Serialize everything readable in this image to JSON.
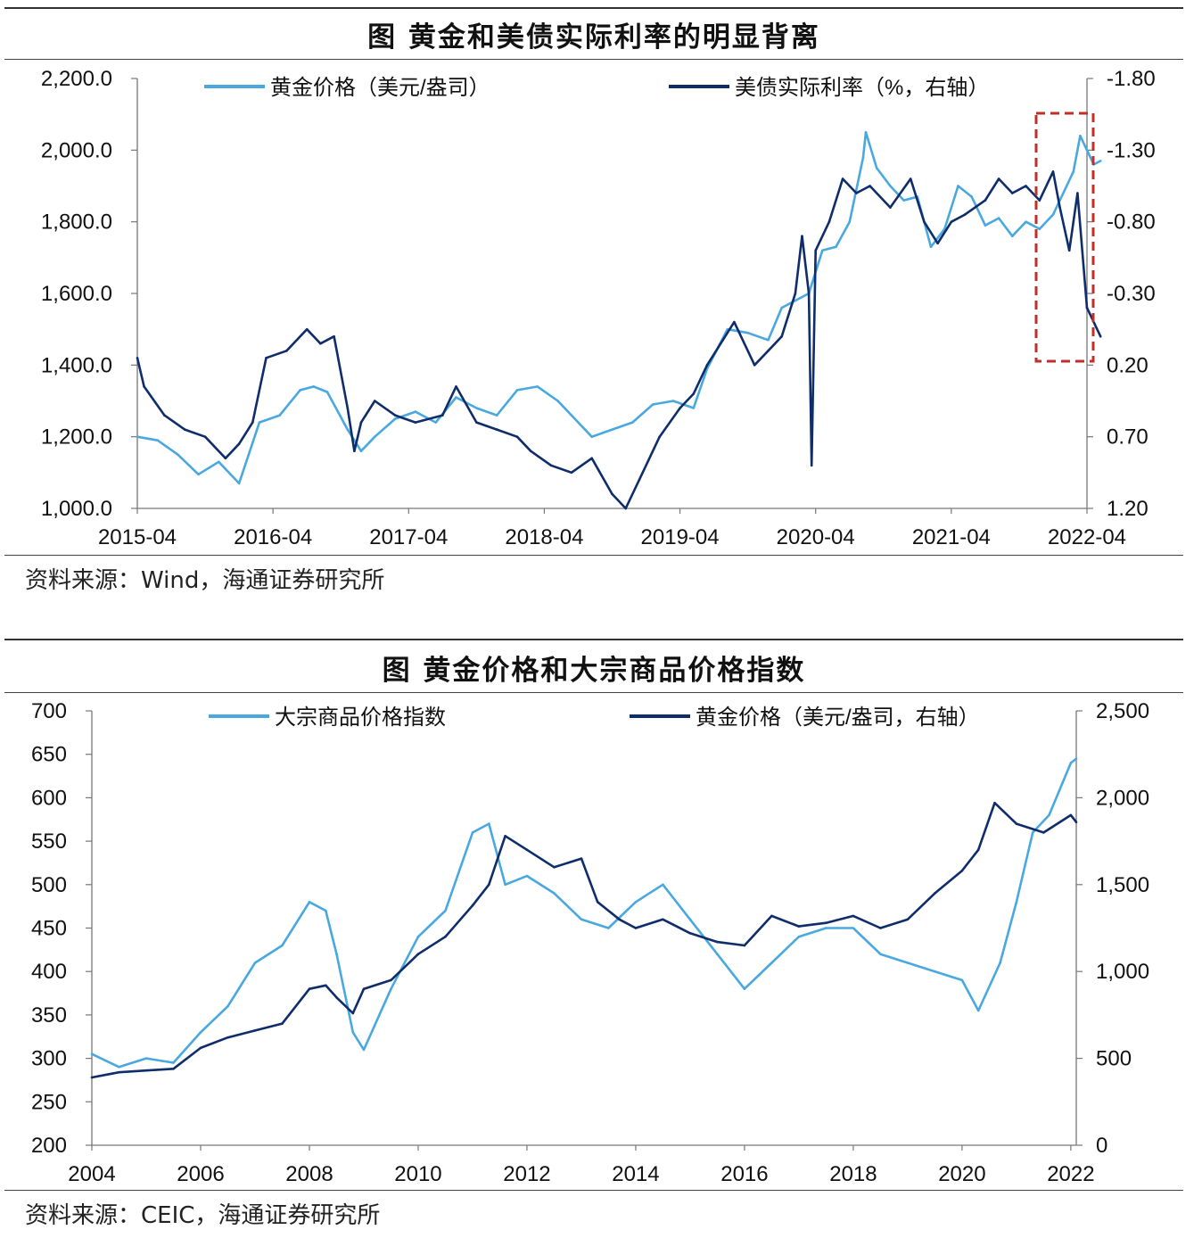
{
  "chart_data": [
    {
      "type": "line",
      "title": "图 黄金和美债实际利率的明显背离",
      "source": "资料来源：Wind，海通证券研究所",
      "x_ticks": [
        "2015-04",
        "2016-04",
        "2017-04",
        "2018-04",
        "2019-04",
        "2020-04",
        "2021-04",
        "2022-04"
      ],
      "y_left": {
        "ticks": [
          "1,000.0",
          "1,200.0",
          "1,400.0",
          "1,600.0",
          "1,800.0",
          "2,000.0",
          "2,200.0"
        ],
        "range": [
          1000,
          2200
        ]
      },
      "y_right": {
        "ticks": [
          "1.20",
          "0.70",
          "0.20",
          "-0.30",
          "-0.80",
          "-1.30",
          "-1.80"
        ],
        "range": [
          1.2,
          -1.8
        ],
        "inverted": true
      },
      "series": [
        {
          "name": "黄金价格（美元/盎司）",
          "axis": "left",
          "color": "#4aa8e0",
          "x": [
            2015.25,
            2015.4,
            2015.55,
            2015.7,
            2015.85,
            2016.0,
            2016.15,
            2016.3,
            2016.45,
            2016.55,
            2016.65,
            2016.8,
            2016.9,
            2017.0,
            2017.15,
            2017.3,
            2017.45,
            2017.6,
            2017.75,
            2017.9,
            2018.05,
            2018.2,
            2018.35,
            2018.45,
            2018.6,
            2018.75,
            2018.9,
            2019.05,
            2019.2,
            2019.35,
            2019.45,
            2019.6,
            2019.75,
            2019.9,
            2020.0,
            2020.1,
            2020.2,
            2020.3,
            2020.4,
            2020.5,
            2020.6,
            2020.62,
            2020.7,
            2020.8,
            2020.9,
            2021.0,
            2021.1,
            2021.2,
            2021.3,
            2021.4,
            2021.5,
            2021.6,
            2021.7,
            2021.8,
            2021.9,
            2022.0,
            2022.1,
            2022.15,
            2022.2,
            2022.3,
            2022.35
          ],
          "y": [
            1200,
            1190,
            1150,
            1095,
            1130,
            1070,
            1240,
            1260,
            1330,
            1340,
            1325,
            1220,
            1160,
            1200,
            1250,
            1270,
            1240,
            1310,
            1280,
            1260,
            1330,
            1340,
            1300,
            1260,
            1200,
            1220,
            1240,
            1290,
            1300,
            1280,
            1390,
            1500,
            1490,
            1470,
            1560,
            1580,
            1600,
            1720,
            1730,
            1800,
            1980,
            2050,
            1950,
            1900,
            1860,
            1870,
            1730,
            1780,
            1900,
            1870,
            1790,
            1810,
            1760,
            1800,
            1780,
            1820,
            1900,
            1940,
            2040,
            1960,
            1970
          ]
        },
        {
          "name": "美债实际利率（%，右轴）",
          "axis": "right",
          "color": "#0f2d6b",
          "x": [
            2015.25,
            2015.3,
            2015.45,
            2015.6,
            2015.75,
            2015.9,
            2016.0,
            2016.1,
            2016.2,
            2016.35,
            2016.5,
            2016.6,
            2016.7,
            2016.8,
            2016.85,
            2016.9,
            2017.0,
            2017.15,
            2017.3,
            2017.5,
            2017.6,
            2017.75,
            2017.9,
            2018.05,
            2018.15,
            2018.3,
            2018.45,
            2018.6,
            2018.75,
            2018.85,
            2018.95,
            2019.1,
            2019.25,
            2019.35,
            2019.45,
            2019.55,
            2019.65,
            2019.8,
            2019.9,
            2020.0,
            2020.1,
            2020.15,
            2020.2,
            2020.22,
            2020.25,
            2020.35,
            2020.45,
            2020.55,
            2020.65,
            2020.8,
            2020.95,
            2021.05,
            2021.15,
            2021.25,
            2021.35,
            2021.5,
            2021.6,
            2021.7,
            2021.8,
            2021.9,
            2022.0,
            2022.05,
            2022.12,
            2022.18,
            2022.25,
            2022.35
          ],
          "y": [
            0.15,
            0.35,
            0.55,
            0.65,
            0.7,
            0.85,
            0.75,
            0.6,
            0.15,
            0.1,
            -0.05,
            0.05,
            0.0,
            0.5,
            0.8,
            0.6,
            0.45,
            0.55,
            0.6,
            0.55,
            0.35,
            0.6,
            0.65,
            0.7,
            0.8,
            0.9,
            0.95,
            0.85,
            1.1,
            1.2,
            1.0,
            0.7,
            0.5,
            0.4,
            0.2,
            0.05,
            -0.1,
            0.2,
            0.1,
            0.0,
            -0.3,
            -0.7,
            -0.3,
            0.9,
            -0.6,
            -0.8,
            -1.1,
            -1.0,
            -1.05,
            -0.9,
            -1.1,
            -0.8,
            -0.65,
            -0.8,
            -0.85,
            -0.95,
            -1.1,
            -1.0,
            -1.05,
            -0.95,
            -1.15,
            -0.9,
            -0.6,
            -1.0,
            -0.2,
            0.0
          ]
        }
      ],
      "annotation": "red dashed box highlighting 2022 divergence"
    },
    {
      "type": "line",
      "title": "图 黄金价格和大宗商品价格指数",
      "source": "资料来源：CEIC，海通证券研究所",
      "x_ticks": [
        "2004",
        "2006",
        "2008",
        "2010",
        "2012",
        "2014",
        "2016",
        "2018",
        "2020",
        "2022"
      ],
      "y_left": {
        "ticks": [
          "200",
          "250",
          "300",
          "350",
          "400",
          "450",
          "500",
          "550",
          "600",
          "650",
          "700"
        ],
        "range": [
          200,
          700
        ]
      },
      "y_right": {
        "ticks": [
          "0",
          "500",
          "1,000",
          "1,500",
          "2,000",
          "2,500"
        ],
        "range": [
          0,
          2500
        ]
      },
      "series": [
        {
          "name": "大宗商品价格指数",
          "axis": "left",
          "color": "#4aa8e0",
          "x": [
            2004.0,
            2004.5,
            2005.0,
            2005.5,
            2006.0,
            2006.5,
            2007.0,
            2007.5,
            2008.0,
            2008.3,
            2008.5,
            2008.8,
            2009.0,
            2009.5,
            2010.0,
            2010.5,
            2011.0,
            2011.3,
            2011.6,
            2012.0,
            2012.5,
            2013.0,
            2013.5,
            2014.0,
            2014.5,
            2015.0,
            2015.5,
            2016.0,
            2016.5,
            2017.0,
            2017.5,
            2018.0,
            2018.5,
            2019.0,
            2019.5,
            2020.0,
            2020.3,
            2020.7,
            2021.0,
            2021.3,
            2021.6,
            2022.0,
            2022.1
          ],
          "y": [
            305,
            290,
            300,
            295,
            330,
            360,
            410,
            430,
            480,
            470,
            420,
            330,
            310,
            380,
            440,
            470,
            560,
            570,
            500,
            510,
            490,
            460,
            450,
            480,
            500,
            460,
            420,
            380,
            410,
            440,
            450,
            450,
            420,
            410,
            400,
            390,
            355,
            410,
            480,
            560,
            580,
            640,
            645
          ]
        },
        {
          "name": "黄金价格（美元/盎司，右轴）",
          "axis": "right",
          "color": "#0f2d6b",
          "x": [
            2004.0,
            2004.5,
            2005.0,
            2005.5,
            2006.0,
            2006.5,
            2007.0,
            2007.5,
            2008.0,
            2008.3,
            2008.5,
            2008.8,
            2009.0,
            2009.5,
            2010.0,
            2010.5,
            2011.0,
            2011.3,
            2011.6,
            2012.0,
            2012.5,
            2013.0,
            2013.3,
            2013.7,
            2014.0,
            2014.5,
            2015.0,
            2015.5,
            2016.0,
            2016.5,
            2017.0,
            2017.5,
            2018.0,
            2018.5,
            2019.0,
            2019.5,
            2020.0,
            2020.3,
            2020.6,
            2021.0,
            2021.5,
            2022.0,
            2022.1
          ],
          "y": [
            390,
            420,
            430,
            440,
            560,
            620,
            660,
            700,
            900,
            920,
            850,
            760,
            900,
            950,
            1100,
            1200,
            1380,
            1500,
            1780,
            1700,
            1600,
            1650,
            1400,
            1300,
            1250,
            1300,
            1220,
            1170,
            1150,
            1320,
            1260,
            1280,
            1320,
            1250,
            1300,
            1450,
            1580,
            1700,
            1970,
            1850,
            1800,
            1900,
            1860
          ]
        }
      ]
    }
  ]
}
